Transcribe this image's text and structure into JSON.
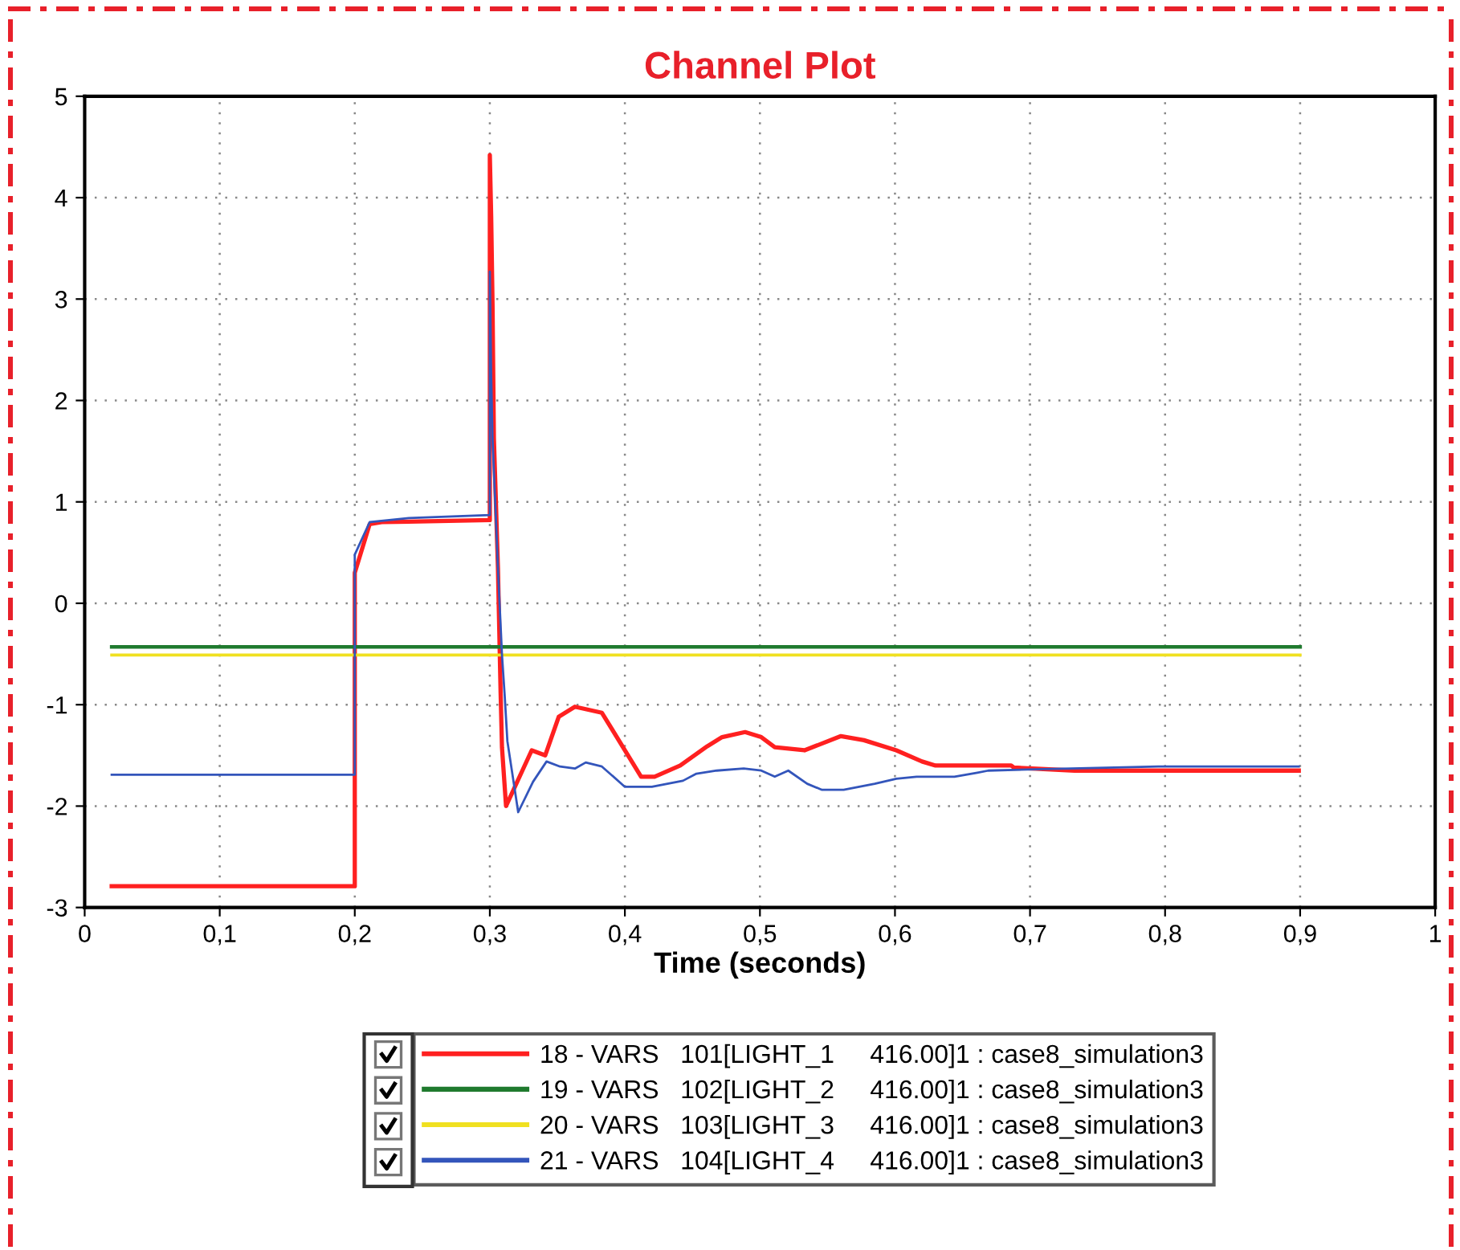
{
  "chart_data": {
    "type": "line",
    "title": "Channel Plot",
    "xlabel": "Time (seconds)",
    "xlim": [
      0,
      1
    ],
    "ylim": [
      -3,
      5
    ],
    "xticks": [
      0,
      {
        "value": 0.1,
        "label": "0,1"
      },
      {
        "value": 0.2,
        "label": "0,2"
      },
      {
        "value": 0.3,
        "label": "0,3"
      },
      {
        "value": 0.4,
        "label": "0,4"
      },
      {
        "value": 0.5,
        "label": "0,5"
      },
      {
        "value": 0.6,
        "label": "0,6"
      },
      {
        "value": 0.7,
        "label": "0,7"
      },
      {
        "value": 0.8,
        "label": "0,8"
      },
      {
        "value": 0.9,
        "label": "0,9"
      },
      1
    ],
    "yticks": [
      -3,
      -2,
      -1,
      0,
      1,
      2,
      3,
      4,
      5
    ],
    "grid": true,
    "legend": "bottom",
    "line_style": "solid",
    "marker": "none",
    "series": [
      {
        "name": "18 - VARS   101[LIGHT_1     416.00]1 : case8_simulation3",
        "color": "#ff2020",
        "x": [
          0.02,
          0.2,
          0.2,
          0.211,
          0.22,
          0.3,
          0.3,
          0.301,
          0.302,
          0.303,
          0.304,
          0.306,
          0.307,
          0.308,
          0.309,
          0.312,
          0.331,
          0.341,
          0.351,
          0.363,
          0.383,
          0.412,
          0.422,
          0.441,
          0.461,
          0.472,
          0.489,
          0.501,
          0.511,
          0.533,
          0.56,
          0.577,
          0.601,
          0.62,
          0.63,
          0.686,
          0.688,
          0.733,
          0.899
        ],
        "values": [
          -2.79,
          -2.79,
          0.3,
          0.78,
          0.8,
          0.82,
          4.42,
          3.81,
          2.95,
          1.63,
          1.21,
          0.35,
          -0.27,
          -0.89,
          -1.42,
          -2.0,
          -1.45,
          -1.5,
          -1.12,
          -1.02,
          -1.08,
          -1.71,
          -1.71,
          -1.6,
          -1.41,
          -1.32,
          -1.27,
          -1.32,
          -1.42,
          -1.45,
          -1.31,
          -1.35,
          -1.45,
          -1.56,
          -1.6,
          -1.6,
          -1.62,
          -1.65,
          -1.65
        ]
      },
      {
        "name": "19 - VARS   102[LIGHT_2     416.00]1 : case8_simulation3",
        "color": "#1f7a2e",
        "x": [
          0.02,
          0.9
        ],
        "values": [
          -0.43,
          -0.43
        ]
      },
      {
        "name": "20 - VARS   103[LIGHT_3     416.00]1 : case8_simulation3",
        "color": "#f0e020",
        "x": [
          0.02,
          0.9
        ],
        "values": [
          -0.51,
          -0.51
        ]
      },
      {
        "name": "21 - VARS   104[LIGHT_4     416.00]1 : case8_simulation3",
        "color": "#3355bb",
        "x": [
          0.02,
          0.2,
          0.2,
          0.211,
          0.24,
          0.3,
          0.3,
          0.301,
          0.302,
          0.306,
          0.309,
          0.311,
          0.313,
          0.321,
          0.332,
          0.342,
          0.352,
          0.363,
          0.371,
          0.383,
          0.4,
          0.42,
          0.443,
          0.453,
          0.468,
          0.488,
          0.501,
          0.511,
          0.521,
          0.535,
          0.546,
          0.562,
          0.585,
          0.601,
          0.616,
          0.644,
          0.661,
          0.669,
          0.698,
          0.795,
          0.899
        ],
        "values": [
          -1.69,
          -1.69,
          0.48,
          0.8,
          0.84,
          0.87,
          3.27,
          2.23,
          1.63,
          0.35,
          -0.51,
          -0.91,
          -1.36,
          -2.06,
          -1.76,
          -1.56,
          -1.61,
          -1.63,
          -1.57,
          -1.61,
          -1.81,
          -1.81,
          -1.75,
          -1.68,
          -1.65,
          -1.63,
          -1.65,
          -1.71,
          -1.65,
          -1.78,
          -1.84,
          -1.84,
          -1.78,
          -1.73,
          -1.71,
          -1.71,
          -1.67,
          -1.65,
          -1.64,
          -1.61,
          -1.61
        ]
      }
    ]
  }
}
